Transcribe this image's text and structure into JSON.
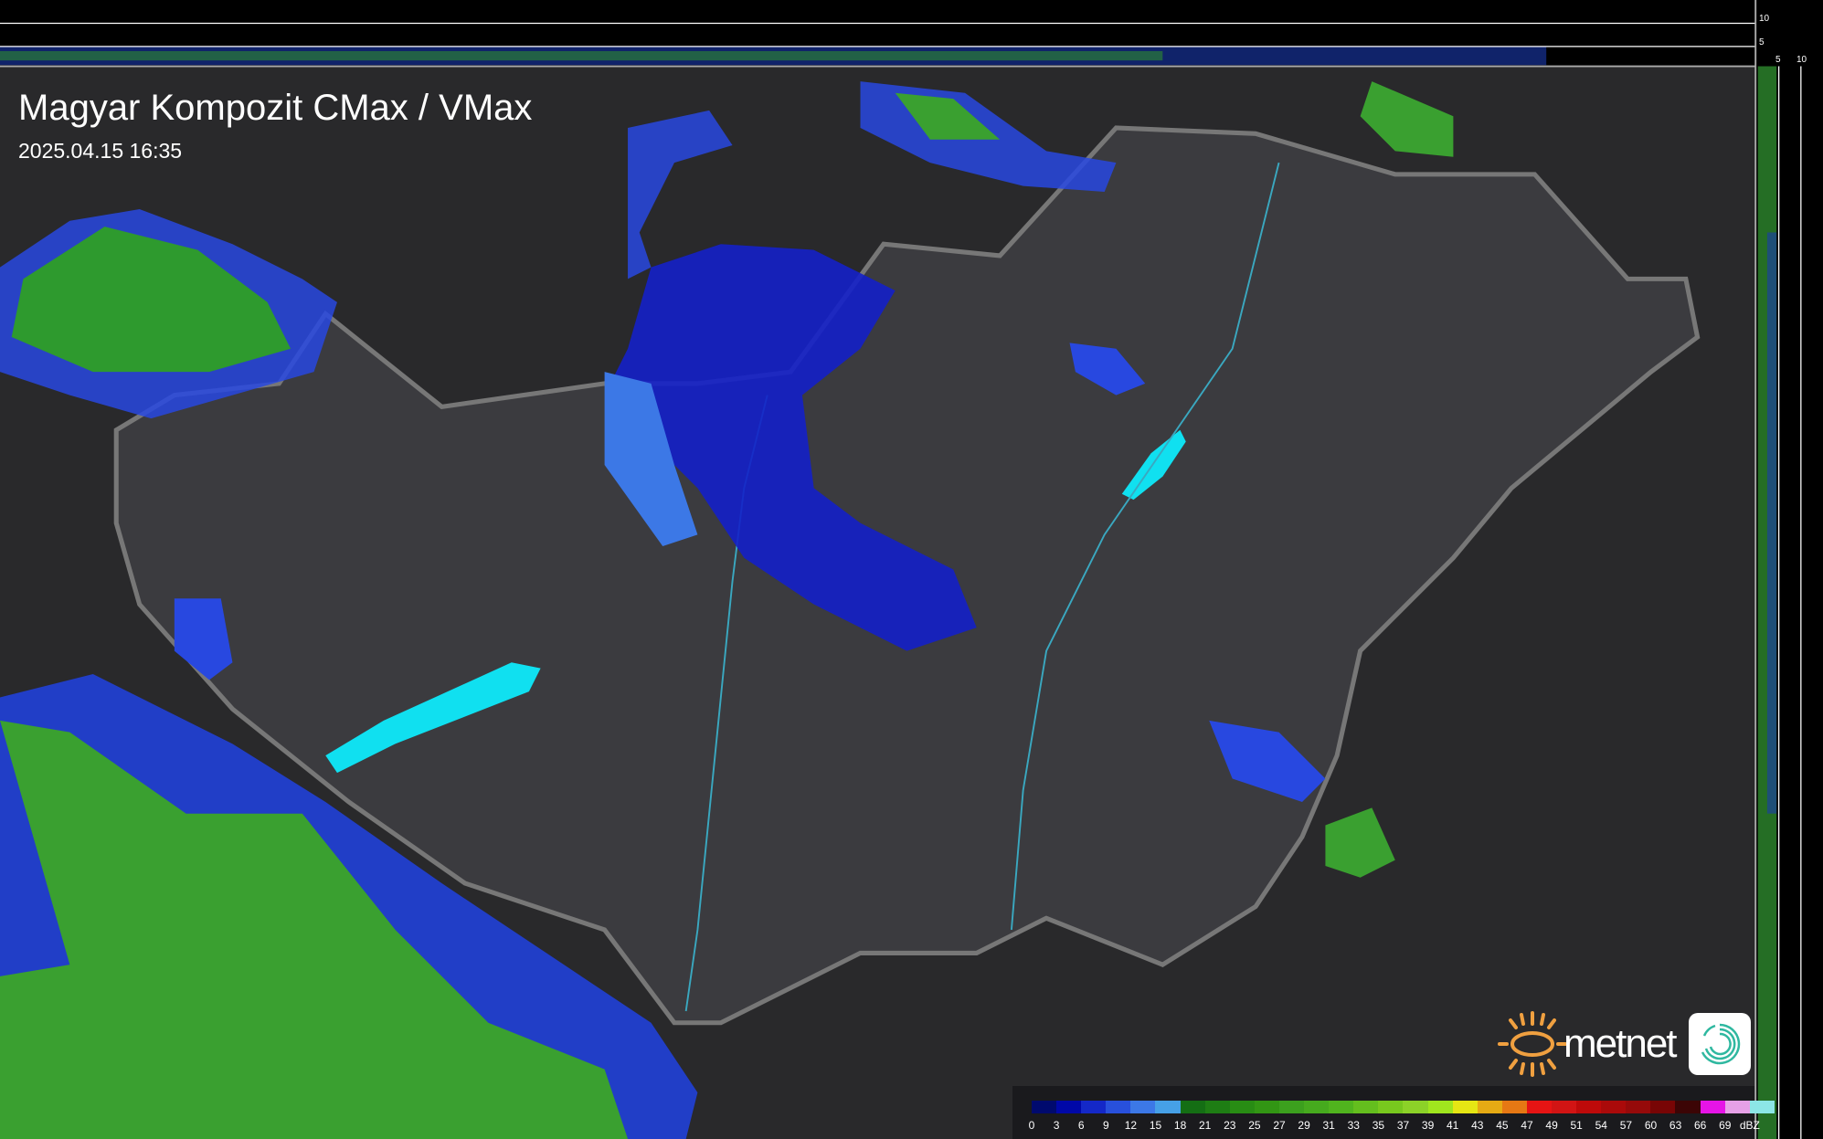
{
  "header": {
    "title": "Magyar Kompozit CMax / VMax",
    "timestamp": "2025.04.15 16:35"
  },
  "legend": {
    "unit": "dBZ",
    "values": [
      "0",
      "3",
      "6",
      "9",
      "12",
      "15",
      "18",
      "21",
      "23",
      "25",
      "27",
      "29",
      "31",
      "33",
      "35",
      "37",
      "39",
      "41",
      "43",
      "45",
      "47",
      "49",
      "51",
      "54",
      "57",
      "60",
      "63",
      "66",
      "69"
    ],
    "colors": [
      "#000a6e",
      "#0008a8",
      "#1428c8",
      "#2850dc",
      "#3c78e6",
      "#46a0e6",
      "#146e14",
      "#1e7d14",
      "#288c14",
      "#329614",
      "#3ca01e",
      "#46aa1e",
      "#50b41e",
      "#64be1e",
      "#78c81e",
      "#8cd228",
      "#a0e61e",
      "#e6e614",
      "#e6aa14",
      "#e67814",
      "#e61414",
      "#d21414",
      "#be0a0a",
      "#aa0a0a",
      "#960a0a",
      "#780505",
      "#3c0505",
      "#e614e6",
      "#e6a0e6"
    ],
    "last_color": "#8ce6e6"
  },
  "profile_scales": {
    "vertical_ticks": [
      "10",
      "5"
    ],
    "horizontal_ticks": [
      "5",
      "10"
    ]
  },
  "branding": {
    "logo_text": "metnet",
    "sun_color": "#f0a040",
    "icon_color": "#2fb8a0"
  }
}
